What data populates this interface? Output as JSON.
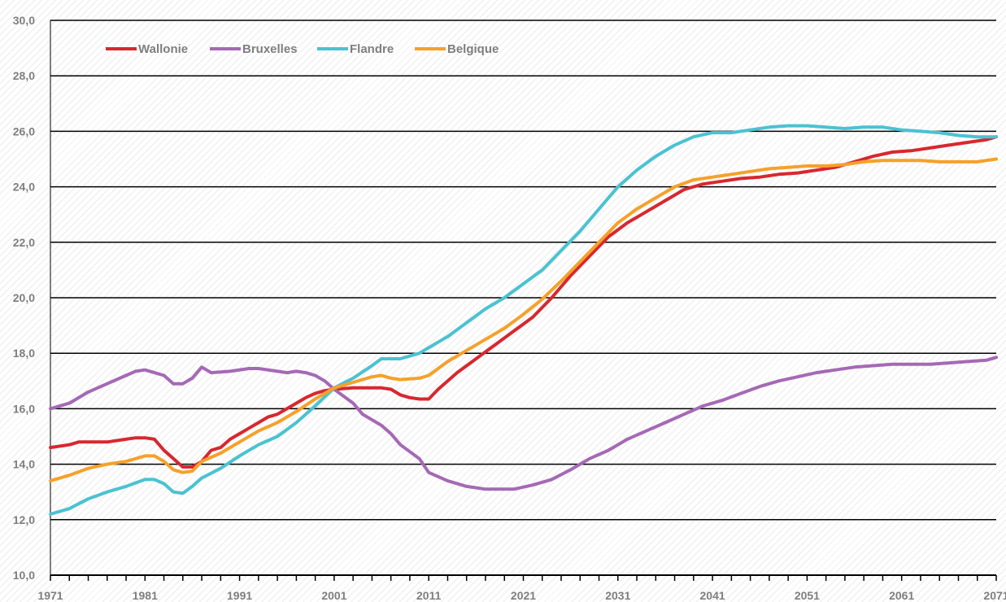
{
  "chart_data": {
    "type": "line",
    "title": "",
    "xlabel": "",
    "ylabel": "",
    "xlim": [
      1971,
      2071
    ],
    "ylim": [
      10,
      30
    ],
    "x_ticks": [
      1971,
      1981,
      1991,
      2001,
      2011,
      2021,
      2031,
      2041,
      2051,
      2061,
      2071
    ],
    "y_ticks": [
      "10,0",
      "12,0",
      "14,0",
      "16,0",
      "18,0",
      "20,0",
      "22,0",
      "24,0",
      "26,0",
      "28,0",
      "30,0"
    ],
    "grid": "horizontal",
    "legend_position": "top-left",
    "series": [
      {
        "name": "Wallonie",
        "color": "#d7282f",
        "points": [
          [
            1971,
            14.6
          ],
          [
            1973,
            14.7
          ],
          [
            1974,
            14.8
          ],
          [
            1977,
            14.8
          ],
          [
            1979,
            14.9
          ],
          [
            1980,
            14.95
          ],
          [
            1981,
            14.95
          ],
          [
            1982,
            14.9
          ],
          [
            1983,
            14.5
          ],
          [
            1984,
            14.2
          ],
          [
            1985,
            13.9
          ],
          [
            1986,
            13.9
          ],
          [
            1987,
            14.1
          ],
          [
            1988,
            14.5
          ],
          [
            1989,
            14.6
          ],
          [
            1990,
            14.9
          ],
          [
            1991,
            15.1
          ],
          [
            1992,
            15.3
          ],
          [
            1993,
            15.5
          ],
          [
            1994,
            15.7
          ],
          [
            1995,
            15.8
          ],
          [
            1996,
            16.0
          ],
          [
            1997,
            16.2
          ],
          [
            1998,
            16.4
          ],
          [
            1999,
            16.55
          ],
          [
            2000,
            16.65
          ],
          [
            2001,
            16.7
          ],
          [
            2003,
            16.75
          ],
          [
            2006,
            16.75
          ],
          [
            2007,
            16.7
          ],
          [
            2008,
            16.5
          ],
          [
            2009,
            16.4
          ],
          [
            2010,
            16.35
          ],
          [
            2011,
            16.35
          ],
          [
            2012,
            16.7
          ],
          [
            2014,
            17.3
          ],
          [
            2016,
            17.8
          ],
          [
            2018,
            18.3
          ],
          [
            2020,
            18.8
          ],
          [
            2022,
            19.3
          ],
          [
            2024,
            20.0
          ],
          [
            2026,
            20.8
          ],
          [
            2028,
            21.5
          ],
          [
            2030,
            22.2
          ],
          [
            2032,
            22.7
          ],
          [
            2034,
            23.1
          ],
          [
            2036,
            23.5
          ],
          [
            2038,
            23.9
          ],
          [
            2040,
            24.1
          ],
          [
            2042,
            24.2
          ],
          [
            2044,
            24.3
          ],
          [
            2046,
            24.35
          ],
          [
            2048,
            24.45
          ],
          [
            2050,
            24.5
          ],
          [
            2052,
            24.6
          ],
          [
            2054,
            24.7
          ],
          [
            2056,
            24.9
          ],
          [
            2058,
            25.1
          ],
          [
            2060,
            25.25
          ],
          [
            2062,
            25.3
          ],
          [
            2064,
            25.4
          ],
          [
            2066,
            25.5
          ],
          [
            2068,
            25.6
          ],
          [
            2070,
            25.7
          ],
          [
            2071,
            25.8
          ]
        ]
      },
      {
        "name": "Bruxelles",
        "color": "#a569b5",
        "points": [
          [
            1971,
            16.0
          ],
          [
            1973,
            16.2
          ],
          [
            1975,
            16.6
          ],
          [
            1977,
            16.9
          ],
          [
            1979,
            17.2
          ],
          [
            1980,
            17.35
          ],
          [
            1981,
            17.4
          ],
          [
            1982,
            17.3
          ],
          [
            1983,
            17.2
          ],
          [
            1984,
            16.9
          ],
          [
            1985,
            16.9
          ],
          [
            1986,
            17.1
          ],
          [
            1987,
            17.5
          ],
          [
            1988,
            17.3
          ],
          [
            1990,
            17.35
          ],
          [
            1992,
            17.45
          ],
          [
            1993,
            17.45
          ],
          [
            1995,
            17.35
          ],
          [
            1996,
            17.3
          ],
          [
            1997,
            17.35
          ],
          [
            1998,
            17.3
          ],
          [
            1999,
            17.2
          ],
          [
            2000,
            17.0
          ],
          [
            2001,
            16.7
          ],
          [
            2003,
            16.2
          ],
          [
            2004,
            15.8
          ],
          [
            2006,
            15.4
          ],
          [
            2007,
            15.1
          ],
          [
            2008,
            14.7
          ],
          [
            2010,
            14.2
          ],
          [
            2011,
            13.7
          ],
          [
            2013,
            13.4
          ],
          [
            2015,
            13.2
          ],
          [
            2017,
            13.1
          ],
          [
            2020,
            13.1
          ],
          [
            2022,
            13.25
          ],
          [
            2024,
            13.45
          ],
          [
            2026,
            13.8
          ],
          [
            2028,
            14.2
          ],
          [
            2030,
            14.5
          ],
          [
            2032,
            14.9
          ],
          [
            2034,
            15.2
          ],
          [
            2036,
            15.5
          ],
          [
            2038,
            15.8
          ],
          [
            2040,
            16.1
          ],
          [
            2042,
            16.3
          ],
          [
            2044,
            16.55
          ],
          [
            2046,
            16.8
          ],
          [
            2048,
            17.0
          ],
          [
            2050,
            17.15
          ],
          [
            2052,
            17.3
          ],
          [
            2054,
            17.4
          ],
          [
            2056,
            17.5
          ],
          [
            2058,
            17.55
          ],
          [
            2060,
            17.6
          ],
          [
            2062,
            17.6
          ],
          [
            2064,
            17.6
          ],
          [
            2066,
            17.65
          ],
          [
            2068,
            17.7
          ],
          [
            2070,
            17.75
          ],
          [
            2071,
            17.85
          ]
        ]
      },
      {
        "name": "Flandre",
        "color": "#4bc2d1",
        "points": [
          [
            1971,
            12.2
          ],
          [
            1973,
            12.4
          ],
          [
            1975,
            12.75
          ],
          [
            1977,
            13.0
          ],
          [
            1979,
            13.2
          ],
          [
            1981,
            13.45
          ],
          [
            1982,
            13.45
          ],
          [
            1983,
            13.3
          ],
          [
            1984,
            13.0
          ],
          [
            1985,
            12.95
          ],
          [
            1986,
            13.2
          ],
          [
            1987,
            13.5
          ],
          [
            1989,
            13.85
          ],
          [
            1991,
            14.3
          ],
          [
            1993,
            14.7
          ],
          [
            1995,
            15.0
          ],
          [
            1997,
            15.5
          ],
          [
            1999,
            16.1
          ],
          [
            2001,
            16.75
          ],
          [
            2003,
            17.1
          ],
          [
            2005,
            17.55
          ],
          [
            2006,
            17.8
          ],
          [
            2008,
            17.8
          ],
          [
            2010,
            18.0
          ],
          [
            2011,
            18.2
          ],
          [
            2013,
            18.6
          ],
          [
            2015,
            19.1
          ],
          [
            2017,
            19.6
          ],
          [
            2019,
            20.0
          ],
          [
            2021,
            20.5
          ],
          [
            2023,
            21.0
          ],
          [
            2025,
            21.7
          ],
          [
            2027,
            22.4
          ],
          [
            2029,
            23.2
          ],
          [
            2031,
            24.0
          ],
          [
            2033,
            24.6
          ],
          [
            2035,
            25.1
          ],
          [
            2037,
            25.5
          ],
          [
            2039,
            25.8
          ],
          [
            2041,
            25.95
          ],
          [
            2043,
            25.95
          ],
          [
            2045,
            26.05
          ],
          [
            2047,
            26.15
          ],
          [
            2049,
            26.2
          ],
          [
            2051,
            26.2
          ],
          [
            2053,
            26.15
          ],
          [
            2055,
            26.1
          ],
          [
            2057,
            26.15
          ],
          [
            2059,
            26.15
          ],
          [
            2061,
            26.05
          ],
          [
            2063,
            26.0
          ],
          [
            2065,
            25.95
          ],
          [
            2067,
            25.85
          ],
          [
            2069,
            25.8
          ],
          [
            2071,
            25.8
          ]
        ]
      },
      {
        "name": "Belgique",
        "color": "#f5a12a",
        "points": [
          [
            1971,
            13.4
          ],
          [
            1973,
            13.6
          ],
          [
            1975,
            13.85
          ],
          [
            1977,
            14.0
          ],
          [
            1979,
            14.1
          ],
          [
            1980,
            14.2
          ],
          [
            1981,
            14.3
          ],
          [
            1982,
            14.3
          ],
          [
            1983,
            14.1
          ],
          [
            1984,
            13.8
          ],
          [
            1985,
            13.7
          ],
          [
            1986,
            13.75
          ],
          [
            1987,
            14.1
          ],
          [
            1989,
            14.4
          ],
          [
            1991,
            14.8
          ],
          [
            1993,
            15.2
          ],
          [
            1995,
            15.5
          ],
          [
            1997,
            15.9
          ],
          [
            1999,
            16.35
          ],
          [
            2001,
            16.75
          ],
          [
            2003,
            16.95
          ],
          [
            2005,
            17.15
          ],
          [
            2006,
            17.2
          ],
          [
            2007,
            17.1
          ],
          [
            2008,
            17.05
          ],
          [
            2010,
            17.1
          ],
          [
            2011,
            17.2
          ],
          [
            2013,
            17.7
          ],
          [
            2015,
            18.1
          ],
          [
            2017,
            18.5
          ],
          [
            2019,
            18.9
          ],
          [
            2021,
            19.4
          ],
          [
            2023,
            19.95
          ],
          [
            2025,
            20.6
          ],
          [
            2027,
            21.3
          ],
          [
            2029,
            22.0
          ],
          [
            2031,
            22.7
          ],
          [
            2033,
            23.2
          ],
          [
            2035,
            23.6
          ],
          [
            2037,
            24.0
          ],
          [
            2039,
            24.25
          ],
          [
            2041,
            24.35
          ],
          [
            2043,
            24.45
          ],
          [
            2045,
            24.55
          ],
          [
            2047,
            24.65
          ],
          [
            2049,
            24.7
          ],
          [
            2051,
            24.75
          ],
          [
            2053,
            24.75
          ],
          [
            2055,
            24.8
          ],
          [
            2057,
            24.9
          ],
          [
            2059,
            24.95
          ],
          [
            2061,
            24.95
          ],
          [
            2063,
            24.95
          ],
          [
            2065,
            24.9
          ],
          [
            2067,
            24.9
          ],
          [
            2069,
            24.9
          ],
          [
            2071,
            25.0
          ]
        ]
      }
    ]
  }
}
